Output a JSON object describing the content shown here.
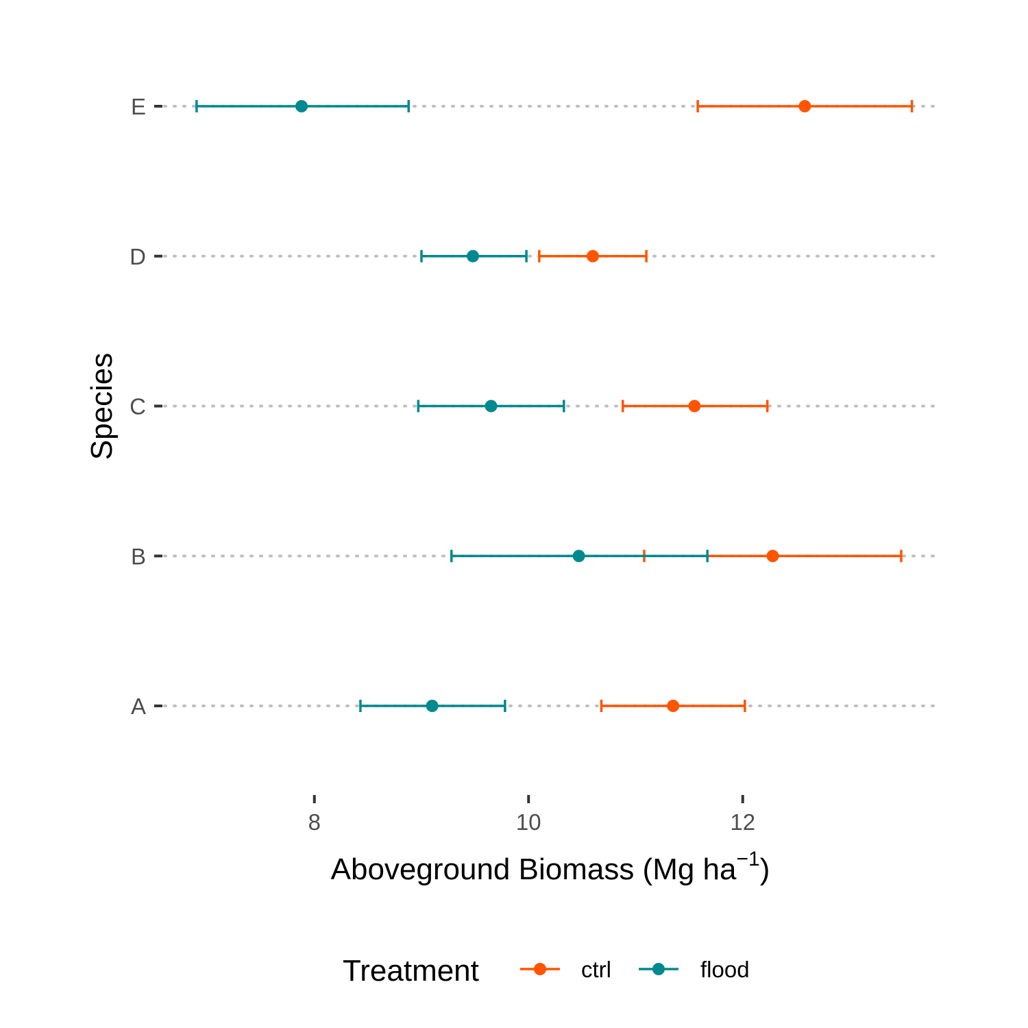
{
  "chart_data": {
    "type": "errorbar-dot",
    "orientation": "horizontal",
    "xlabel": {
      "main": "Aboveground Biomass (Mg ha",
      "sup": "−1",
      "end": ")"
    },
    "ylabel": "Species",
    "xlim": [
      6.6,
      13.8
    ],
    "xticks": [
      8,
      10,
      12
    ],
    "xtick_labels": [
      "8",
      "10",
      "12"
    ],
    "categories": [
      "A",
      "B",
      "C",
      "D",
      "E"
    ],
    "grid": "dotted-horizontal-per-category",
    "legend": {
      "title": "Treatment",
      "position": "bottom",
      "entries": [
        "ctrl",
        "flood"
      ]
    },
    "series": [
      {
        "name": "ctrl",
        "color": "#FF5500",
        "points": [
          {
            "category": "A",
            "mean": 11.35,
            "lower": 10.68,
            "upper": 12.02
          },
          {
            "category": "B",
            "mean": 12.28,
            "lower": 11.08,
            "upper": 13.48
          },
          {
            "category": "C",
            "mean": 11.55,
            "lower": 10.88,
            "upper": 12.23
          },
          {
            "category": "D",
            "mean": 10.6,
            "lower": 10.1,
            "upper": 11.1
          },
          {
            "category": "E",
            "mean": 12.58,
            "lower": 11.58,
            "upper": 13.58
          }
        ]
      },
      {
        "name": "flood",
        "color": "#00898E",
        "points": [
          {
            "category": "A",
            "mean": 9.1,
            "lower": 8.43,
            "upper": 9.78
          },
          {
            "category": "B",
            "mean": 10.47,
            "lower": 9.28,
            "upper": 11.67
          },
          {
            "category": "C",
            "mean": 9.65,
            "lower": 8.97,
            "upper": 10.33
          },
          {
            "category": "D",
            "mean": 9.48,
            "lower": 9.0,
            "upper": 9.98
          },
          {
            "category": "E",
            "mean": 7.88,
            "lower": 6.9,
            "upper": 8.88
          }
        ]
      }
    ]
  }
}
